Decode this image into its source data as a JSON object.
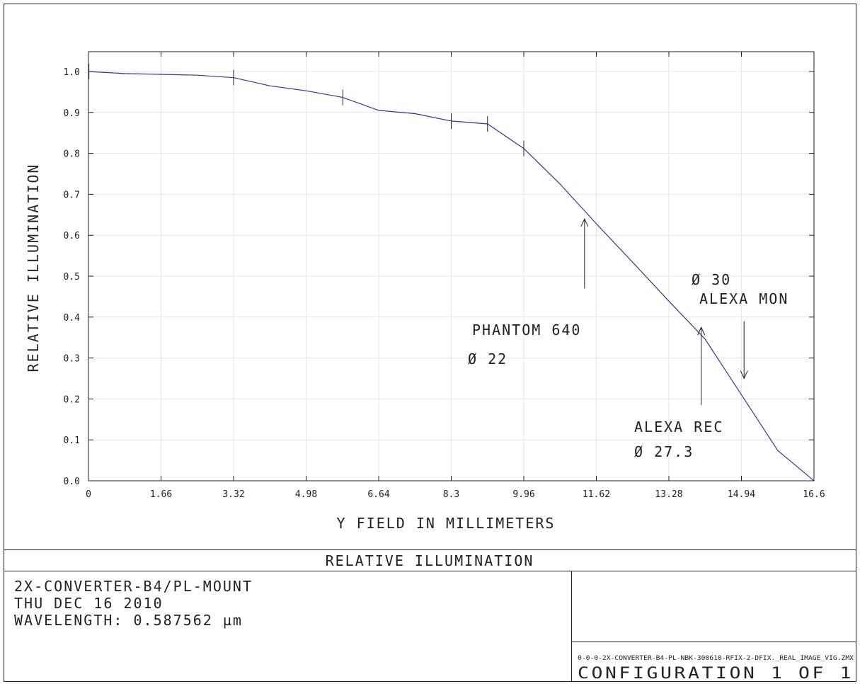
{
  "chart_data": {
    "type": "line",
    "title": "",
    "xlabel": "Y FIELD IN MILLIMETERS",
    "ylabel": "RELATIVE ILLUMINATION",
    "xlim": [
      0,
      16.6
    ],
    "ylim": [
      0.0,
      1.05
    ],
    "grid": true,
    "x_ticks": [
      "0",
      "1.66",
      "3.32",
      "4.98",
      "6.64",
      "8.3",
      "9.96",
      "11.62",
      "13.28",
      "14.94",
      "16.6"
    ],
    "y_ticks": [
      "0.0",
      "0.1",
      "0.2",
      "0.3",
      "0.4",
      "0.5",
      "0.6",
      "0.7",
      "0.8",
      "0.9",
      "1.0"
    ],
    "series": [
      {
        "color": "#2b3a99",
        "x": [
          0,
          0.83,
          1.66,
          2.49,
          3.32,
          4.15,
          4.98,
          5.81,
          6.64,
          7.47,
          8.3,
          9.13,
          9.96,
          10.79,
          11.62,
          12.45,
          13.28,
          14.11,
          14.94,
          15.77,
          16.6
        ],
        "y": [
          1.0,
          0.995,
          0.993,
          0.991,
          0.985,
          0.965,
          0.953,
          0.937,
          0.905,
          0.897,
          0.879,
          0.872,
          0.812,
          0.725,
          0.628,
          0.534,
          0.439,
          0.346,
          0.21,
          0.074,
          0.0
        ]
      }
    ],
    "markers_x": [
      0.01,
      3.32,
      5.82,
      8.3,
      9.13,
      9.96
    ],
    "annotations": [
      {
        "lines": [
          "PHANTOM 640",
          "Ø 22"
        ],
        "arrow_x": 11.35,
        "arrow_from_y": 0.47,
        "arrow_to_y": 0.64
      },
      {
        "lines": [
          "Ø 30",
          "ALEXA MON"
        ],
        "arrow_x": 15.0,
        "arrow_from_y": 0.39,
        "arrow_to_y": 0.25
      },
      {
        "lines": [
          "ALEXA REC",
          "Ø 27.3"
        ],
        "arrow_x": 14.02,
        "arrow_from_y": 0.185,
        "arrow_to_y": 0.375
      }
    ]
  },
  "footer": {
    "plot_title": "RELATIVE ILLUMINATION",
    "lens_name": "2X-CONVERTER-B4/PL-MOUNT",
    "date": "THU DEC 16 2010",
    "wavelength": "WAVELENGTH: 0.587562 µm",
    "file_name": "0-0-0-2X-CONVERTER-B4-PL-NBK-300610-RFIX-2-DFIX._REAL_IMAGE_VIG.ZMX",
    "configuration": "CONFIGURATION 1 OF 1"
  }
}
